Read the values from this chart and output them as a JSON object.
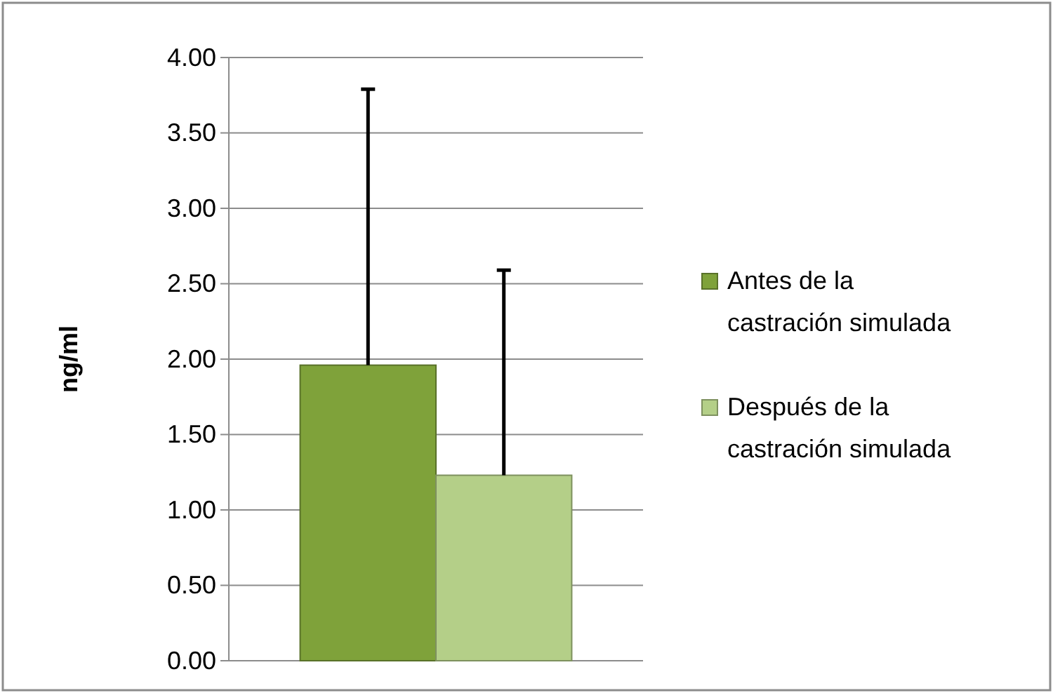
{
  "chart_data": {
    "type": "bar",
    "ylabel": "ng/ml",
    "categories": [
      null
    ],
    "series": [
      {
        "name": "Antes de la castración simulada",
        "color": "#7fa23a",
        "values": [
          1.96
        ],
        "errors": [
          [
            1.96,
            3.79
          ]
        ]
      },
      {
        "name": "Después de la castración simulada",
        "color": "#b4cf88",
        "values": [
          1.23
        ],
        "errors": [
          [
            1.23,
            2.59
          ]
        ]
      }
    ],
    "ylim": [
      0,
      4
    ],
    "yticks": [
      {
        "value": 0,
        "label": "0.00"
      },
      {
        "value": 0.5,
        "label": "0.50"
      },
      {
        "value": 1,
        "label": "1.00"
      },
      {
        "value": 1.5,
        "label": "1.50"
      },
      {
        "value": 2,
        "label": "2.00"
      },
      {
        "value": 2.5,
        "label": "2.50"
      },
      {
        "value": 3,
        "label": "3.00"
      },
      {
        "value": 3.5,
        "label": "3.50"
      },
      {
        "value": 4,
        "label": "4.00"
      }
    ],
    "grid": "y",
    "legend": "right"
  }
}
